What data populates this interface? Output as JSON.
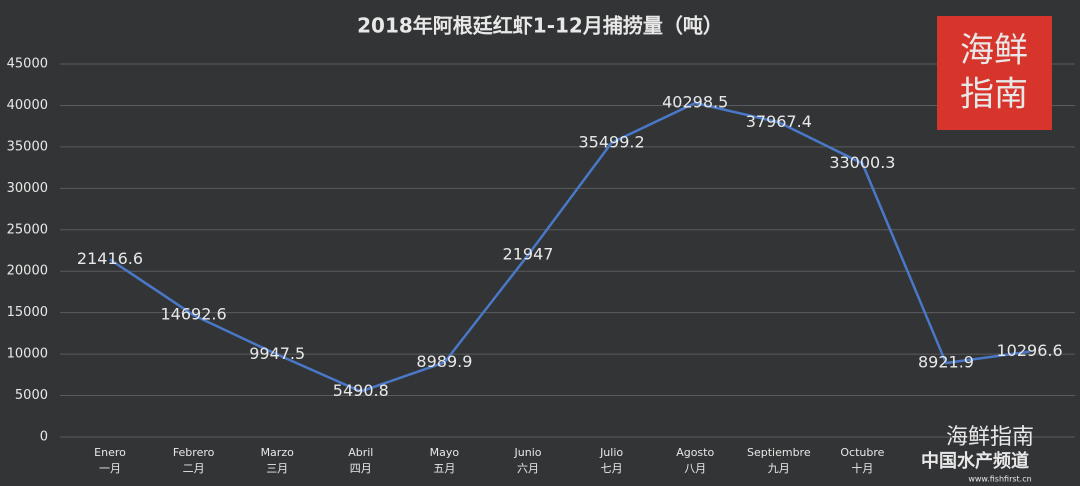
{
  "chart_data": {
    "type": "line",
    "title": "2018年阿根廷红虾1-12月捕捞量（吨）",
    "categories": [
      "Enero",
      "Febrero",
      "Marzo",
      "Abril",
      "Mayo",
      "Junio",
      "Julio",
      "Agosto",
      "Septiembre",
      "Octubre",
      null,
      null
    ],
    "category_subtitles": [
      "一月",
      "二月",
      "三月",
      "四月",
      "五月",
      "六月",
      "七月",
      "八月",
      "九月",
      "十月",
      null,
      null
    ],
    "series": [
      {
        "color": "#4a78c8",
        "values": [
          21416.6,
          14692.6,
          9947.5,
          5490.8,
          8989.9,
          21947,
          35499.2,
          40298.5,
          37967.4,
          33000.3,
          8921.9,
          10296.6
        ]
      }
    ],
    "ylim": [
      0,
      45000
    ],
    "yticks": [
      0,
      5000,
      10000,
      15000,
      20000,
      25000,
      30000,
      35000,
      40000,
      45000
    ],
    "grid": true
  },
  "logo": {
    "line1": "海鲜",
    "line2": "指南"
  },
  "watermark": {
    "name": "海鲜指南",
    "channel": "中国水产频道",
    "site": "www.fishfirst.cn"
  }
}
